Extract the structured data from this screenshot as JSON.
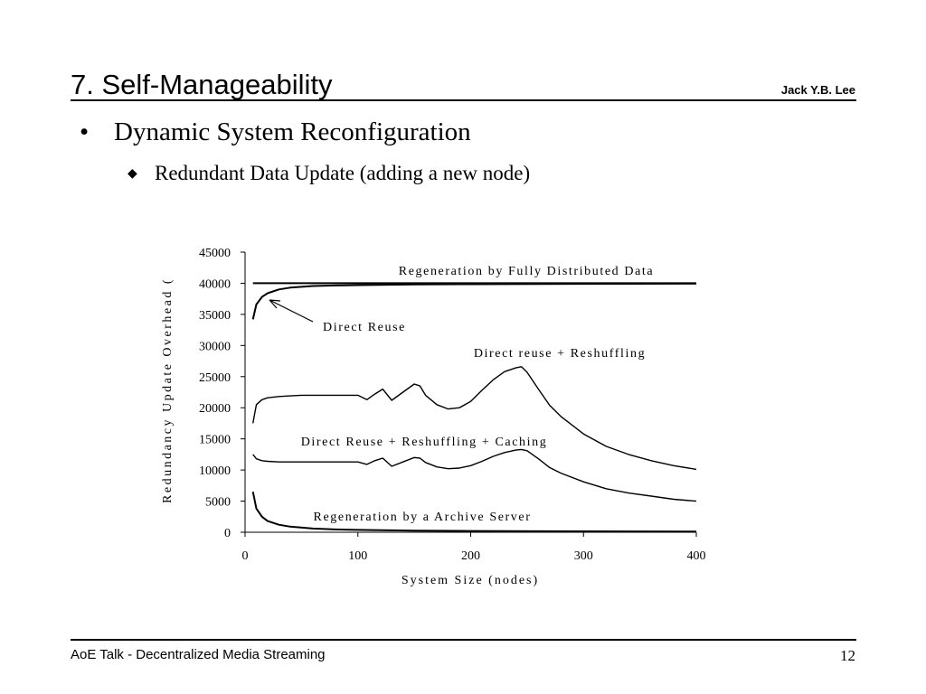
{
  "slide": {
    "title": "7. Self-Manageability",
    "author": "Jack Y.B. Lee",
    "bullet_1": "Dynamic System Reconfiguration",
    "bullet_1_marker": "•",
    "bullet_2": "Redundant Data Update (adding a new node)",
    "bullet_2_marker": "◆",
    "footer": "AoE Talk - Decentralized Media Streaming",
    "page_number": "12"
  },
  "chart_data": {
    "type": "line",
    "title": "",
    "xlabel": "System Size (nodes)",
    "ylabel": "Redundancy Update Overhead (",
    "xlim": [
      0,
      400
    ],
    "ylim": [
      0,
      45000
    ],
    "x_ticks": [
      "0",
      "100",
      "200",
      "300",
      "400"
    ],
    "y_ticks": [
      "0",
      "5000",
      "10000",
      "15000",
      "20000",
      "25000",
      "30000",
      "35000",
      "40000",
      "45000"
    ],
    "grid": false,
    "legend": "none",
    "line_color": "#000000",
    "series": [
      {
        "label": "Regeneration by Fully Distributed Data",
        "x": [
          7,
          400
        ],
        "y": [
          40000,
          40000
        ]
      },
      {
        "label": "Direct Reuse",
        "x": [
          7,
          10,
          15,
          20,
          30,
          40,
          60,
          80,
          100,
          150,
          200,
          300,
          400
        ],
        "y": [
          34200,
          36600,
          37800,
          38400,
          39000,
          39300,
          39550,
          39650,
          39700,
          39800,
          39850,
          39900,
          39930
        ]
      },
      {
        "label": "Direct reuse + Reshuffling",
        "x": [
          7,
          10,
          15,
          20,
          30,
          40,
          50,
          60,
          70,
          80,
          90,
          100,
          108,
          115,
          122,
          130,
          140,
          150,
          155,
          160,
          170,
          180,
          190,
          200,
          210,
          220,
          230,
          240,
          245,
          250,
          260,
          270,
          280,
          300,
          320,
          340,
          360,
          380,
          400
        ],
        "y": [
          17500,
          20500,
          21300,
          21600,
          21800,
          21900,
          22000,
          22000,
          22000,
          22000,
          22000,
          22000,
          21300,
          22200,
          23000,
          21200,
          22500,
          23800,
          23500,
          22000,
          20500,
          19800,
          20000,
          21000,
          22800,
          24500,
          25800,
          26400,
          26600,
          25700,
          23000,
          20400,
          18600,
          15800,
          13800,
          12500,
          11500,
          10700,
          10100
        ]
      },
      {
        "label": "Direct Reuse + Reshuffling + Caching",
        "x": [
          7,
          10,
          15,
          20,
          30,
          40,
          60,
          80,
          100,
          108,
          115,
          122,
          130,
          140,
          150,
          155,
          160,
          170,
          180,
          190,
          200,
          210,
          220,
          230,
          240,
          245,
          250,
          260,
          270,
          280,
          300,
          320,
          340,
          360,
          380,
          400
        ],
        "y": [
          12500,
          11800,
          11500,
          11400,
          11300,
          11300,
          11300,
          11300,
          11300,
          10900,
          11500,
          11900,
          10600,
          11300,
          12000,
          11900,
          11200,
          10500,
          10200,
          10300,
          10700,
          11400,
          12200,
          12800,
          13200,
          13300,
          13100,
          11800,
          10400,
          9500,
          8100,
          7000,
          6300,
          5800,
          5300,
          5000
        ]
      },
      {
        "label": "Regeneration by a Archive Server",
        "x": [
          7,
          10,
          15,
          20,
          30,
          40,
          60,
          80,
          100,
          150,
          200,
          300,
          400
        ],
        "y": [
          6500,
          3800,
          2500,
          1800,
          1200,
          900,
          600,
          450,
          380,
          260,
          200,
          140,
          100
        ]
      }
    ]
  }
}
